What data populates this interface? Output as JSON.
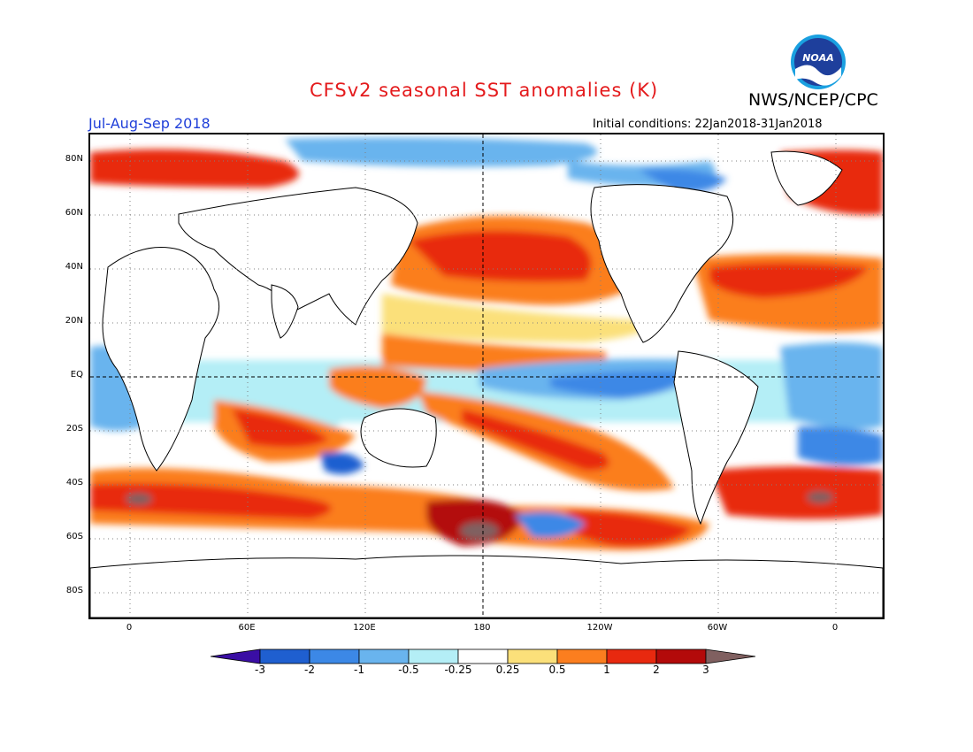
{
  "header": {
    "title": "CFSv2 seasonal SST anomalies (K)",
    "agency": "NWS/NCEP/CPC",
    "season": "Jul-Aug-Sep 2018",
    "initial_conditions": "Initial conditions: 22Jan2018-31Jan2018",
    "logo_text": "NOAA"
  },
  "map": {
    "projection": "cylindrical equidistant",
    "lat_labels": [
      "80N",
      "60N",
      "40N",
      "20N",
      "EQ",
      "20S",
      "40S",
      "60S",
      "80S"
    ],
    "lon_labels": [
      "0",
      "60E",
      "120E",
      "180",
      "120W",
      "60W",
      "0"
    ],
    "colors": {
      "cold3": "#3a0ea4",
      "cold2": "#1f5fd0",
      "cold1": "#3c88e6",
      "cold05": "#69b4ee",
      "cold025": "#b4eef6",
      "neutral": "#ffffff",
      "warm025": "#fbe07a",
      "warm05": "#fb7e1f",
      "warm1": "#e8290f",
      "warm2": "#b30a0a",
      "warm3": "#806060"
    }
  },
  "colorbar": {
    "labels": [
      "-3",
      "-2",
      "-1",
      "-0.5",
      "-0.25",
      "0.25",
      "0.5",
      "1",
      "2",
      "3"
    ],
    "colors": [
      "#3a0ea4",
      "#1f5fd0",
      "#3c88e6",
      "#69b4ee",
      "#b4eef6",
      "#ffffff",
      "#fbe07a",
      "#fb7e1f",
      "#e8290f",
      "#b30a0a",
      "#806060"
    ]
  }
}
